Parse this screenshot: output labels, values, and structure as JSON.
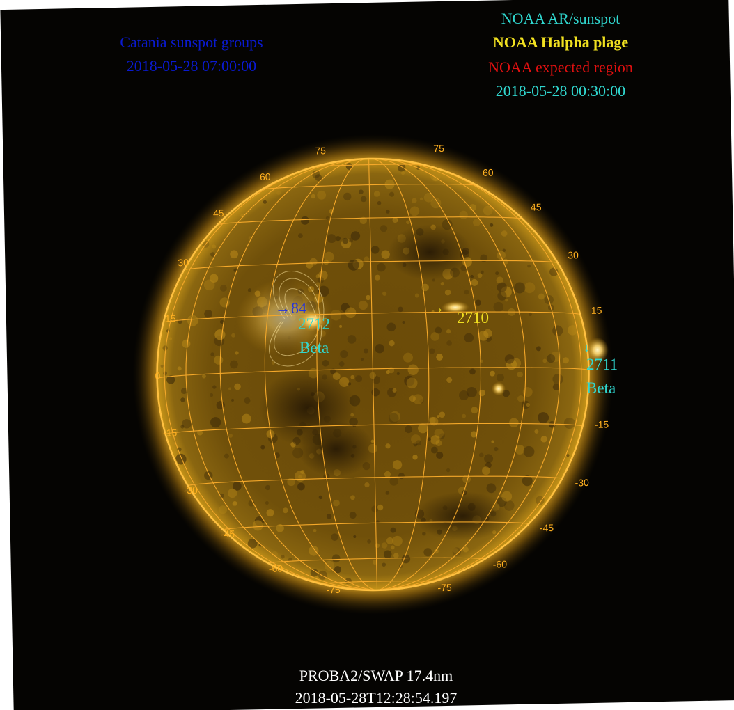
{
  "catania_legend": {
    "title": "Catania sunspot groups",
    "datetime": "2018-05-28 07:00:00",
    "color": "#0a1ad0"
  },
  "noaa_legend": {
    "ar_sunspot": "NOAA AR/sunspot",
    "halpha_plage": "NOAA Halpha plage",
    "expected_region": "NOAA expected region",
    "datetime": "2018-05-28 00:30:00",
    "ar_color": "#30d8d0",
    "plage_color": "#f0e020",
    "expected_color": "#e01010"
  },
  "footer": {
    "instrument": "PROBA2/SWAP 17.4nm",
    "timestamp": "2018-05-28T12:28:54.197"
  },
  "grid_labels": {
    "top_left": [
      "75",
      "60",
      "45",
      "30",
      "15",
      "0",
      "-15",
      "-30",
      "-45",
      "-60",
      "-75"
    ],
    "right": [
      "75",
      "60",
      "45",
      "30",
      "15",
      "-15",
      "-30",
      "-45",
      "-60",
      "-75"
    ]
  },
  "regions": [
    {
      "number": "2712",
      "class": "Beta",
      "type": "ar"
    },
    {
      "number": "2710",
      "type": "plage"
    },
    {
      "number": "2711",
      "class": "Beta",
      "type": "ar"
    }
  ],
  "catania_group": {
    "label": "84"
  },
  "colors": {
    "sun_disk": "#b88a10",
    "grid": "#ffb020",
    "background": "#050402"
  }
}
